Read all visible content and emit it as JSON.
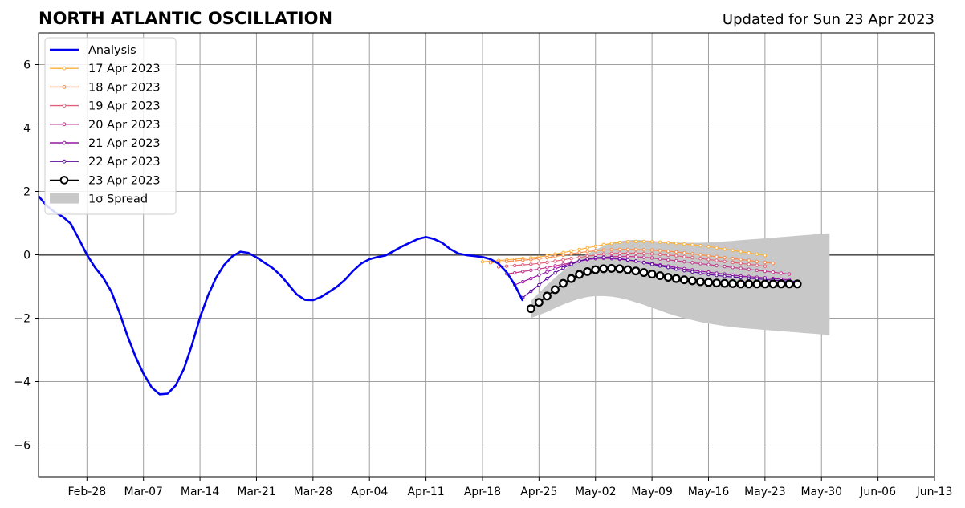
{
  "header": {
    "title": "NORTH ATLANTIC OSCILLATION",
    "updated": "Updated for Sun 23 Apr 2023"
  },
  "chart_data": {
    "type": "line",
    "title": "NORTH ATLANTIC OSCILLATION",
    "subtitle": "Updated for Sun 23 Apr 2023",
    "xlabel": "",
    "ylabel": "",
    "x_axis": {
      "min": "2023-02-22",
      "max": "2023-06-13",
      "ticks": [
        {
          "date": "2023-02-28",
          "label": "Feb-28"
        },
        {
          "date": "2023-03-07",
          "label": "Mar-07"
        },
        {
          "date": "2023-03-14",
          "label": "Mar-14"
        },
        {
          "date": "2023-03-21",
          "label": "Mar-21"
        },
        {
          "date": "2023-03-28",
          "label": "Mar-28"
        },
        {
          "date": "2023-04-04",
          "label": "Apr-04"
        },
        {
          "date": "2023-04-11",
          "label": "Apr-11"
        },
        {
          "date": "2023-04-18",
          "label": "Apr-18"
        },
        {
          "date": "2023-04-25",
          "label": "Apr-25"
        },
        {
          "date": "2023-05-02",
          "label": "May-02"
        },
        {
          "date": "2023-05-09",
          "label": "May-09"
        },
        {
          "date": "2023-05-16",
          "label": "May-16"
        },
        {
          "date": "2023-05-23",
          "label": "May-23"
        },
        {
          "date": "2023-05-30",
          "label": "May-30"
        },
        {
          "date": "2023-06-06",
          "label": "Jun-06"
        },
        {
          "date": "2023-06-13",
          "label": "Jun-13"
        }
      ]
    },
    "y_axis": {
      "min": -7,
      "max": 7,
      "ticks": [
        {
          "value": -6,
          "label": "−6"
        },
        {
          "value": -4,
          "label": "−4"
        },
        {
          "value": -2,
          "label": "−2"
        },
        {
          "value": 0,
          "label": "0"
        },
        {
          "value": 2,
          "label": "2"
        },
        {
          "value": 4,
          "label": "4"
        },
        {
          "value": 6,
          "label": "6"
        }
      ]
    },
    "grid": true,
    "legend_position": "top-left",
    "analysis": {
      "name": "Analysis",
      "color": "#0000ee",
      "points": [
        [
          "2023-02-22",
          1.85
        ],
        [
          "2023-02-23",
          1.55
        ],
        [
          "2023-02-24",
          1.35
        ],
        [
          "2023-02-25",
          1.2
        ],
        [
          "2023-02-26",
          0.98
        ],
        [
          "2023-02-27",
          0.5
        ],
        [
          "2023-02-28",
          0.0
        ],
        [
          "2023-03-01",
          -0.4
        ],
        [
          "2023-03-02",
          -0.72
        ],
        [
          "2023-03-03",
          -1.15
        ],
        [
          "2023-03-04",
          -1.8
        ],
        [
          "2023-03-05",
          -2.55
        ],
        [
          "2023-03-06",
          -3.2
        ],
        [
          "2023-03-07",
          -3.75
        ],
        [
          "2023-03-08",
          -4.18
        ],
        [
          "2023-03-09",
          -4.4
        ],
        [
          "2023-03-10",
          -4.38
        ],
        [
          "2023-03-11",
          -4.12
        ],
        [
          "2023-03-12",
          -3.6
        ],
        [
          "2023-03-13",
          -2.85
        ],
        [
          "2023-03-14",
          -1.98
        ],
        [
          "2023-03-15",
          -1.28
        ],
        [
          "2023-03-16",
          -0.72
        ],
        [
          "2023-03-17",
          -0.32
        ],
        [
          "2023-03-18",
          -0.05
        ],
        [
          "2023-03-19",
          0.1
        ],
        [
          "2023-03-20",
          0.06
        ],
        [
          "2023-03-21",
          -0.08
        ],
        [
          "2023-03-22",
          -0.25
        ],
        [
          "2023-03-23",
          -0.42
        ],
        [
          "2023-03-24",
          -0.65
        ],
        [
          "2023-03-25",
          -0.95
        ],
        [
          "2023-03-26",
          -1.25
        ],
        [
          "2023-03-27",
          -1.42
        ],
        [
          "2023-03-28",
          -1.43
        ],
        [
          "2023-03-29",
          -1.33
        ],
        [
          "2023-03-30",
          -1.17
        ],
        [
          "2023-03-31",
          -1.0
        ],
        [
          "2023-04-01",
          -0.78
        ],
        [
          "2023-04-02",
          -0.5
        ],
        [
          "2023-04-03",
          -0.27
        ],
        [
          "2023-04-04",
          -0.14
        ],
        [
          "2023-04-05",
          -0.07
        ],
        [
          "2023-04-06",
          -0.02
        ],
        [
          "2023-04-07",
          0.12
        ],
        [
          "2023-04-08",
          0.26
        ],
        [
          "2023-04-09",
          0.38
        ],
        [
          "2023-04-10",
          0.5
        ],
        [
          "2023-04-11",
          0.56
        ],
        [
          "2023-04-12",
          0.5
        ],
        [
          "2023-04-13",
          0.38
        ],
        [
          "2023-04-14",
          0.18
        ],
        [
          "2023-04-15",
          0.04
        ],
        [
          "2023-04-16",
          -0.01
        ],
        [
          "2023-04-17",
          -0.04
        ],
        [
          "2023-04-18",
          -0.07
        ],
        [
          "2023-04-19",
          -0.14
        ],
        [
          "2023-04-20",
          -0.28
        ],
        [
          "2023-04-21",
          -0.55
        ],
        [
          "2023-04-22",
          -0.95
        ],
        [
          "2023-04-23",
          -1.45
        ]
      ]
    },
    "forecasts": [
      {
        "name": "17 Apr 2023",
        "color": "#fbb03b",
        "start": "2023-04-18",
        "values": [
          -0.22,
          -0.2,
          -0.18,
          -0.16,
          -0.14,
          -0.12,
          -0.1,
          -0.07,
          -0.03,
          0.02,
          0.07,
          0.12,
          0.17,
          0.22,
          0.27,
          0.32,
          0.36,
          0.39,
          0.41,
          0.42,
          0.42,
          0.41,
          0.4,
          0.38,
          0.36,
          0.34,
          0.32,
          0.29,
          0.26,
          0.22,
          0.18,
          0.14,
          0.1,
          0.06,
          0.02,
          -0.02
        ]
      },
      {
        "name": "18 Apr 2023",
        "color": "#f78d4b",
        "start": "2023-04-19",
        "values": [
          -0.25,
          -0.23,
          -0.21,
          -0.19,
          -0.17,
          -0.15,
          -0.12,
          -0.09,
          -0.05,
          -0.01,
          0.03,
          0.07,
          0.1,
          0.13,
          0.15,
          0.16,
          0.17,
          0.17,
          0.17,
          0.16,
          0.15,
          0.13,
          0.11,
          0.09,
          0.06,
          0.03,
          0.0,
          -0.03,
          -0.06,
          -0.09,
          -0.12,
          -0.15,
          -0.18,
          -0.21,
          -0.24,
          -0.27
        ]
      },
      {
        "name": "19 Apr 2023",
        "color": "#e0607a",
        "start": "2023-04-20",
        "values": [
          -0.38,
          -0.36,
          -0.34,
          -0.32,
          -0.3,
          -0.27,
          -0.24,
          -0.2,
          -0.16,
          -0.12,
          -0.08,
          -0.04,
          -0.01,
          0.02,
          0.04,
          0.05,
          0.05,
          0.05,
          0.04,
          0.03,
          0.01,
          -0.01,
          -0.03,
          -0.06,
          -0.09,
          -0.12,
          -0.15,
          -0.18,
          -0.21,
          -0.24,
          -0.27,
          -0.3,
          -0.33,
          -0.36
        ]
      },
      {
        "name": "20 Apr 2023",
        "color": "#c2398f",
        "start": "2023-04-21",
        "values": [
          -0.6,
          -0.57,
          -0.53,
          -0.49,
          -0.45,
          -0.4,
          -0.35,
          -0.3,
          -0.25,
          -0.2,
          -0.15,
          -0.11,
          -0.08,
          -0.06,
          -0.05,
          -0.05,
          -0.06,
          -0.08,
          -0.1,
          -0.13,
          -0.16,
          -0.19,
          -0.22,
          -0.25,
          -0.28,
          -0.31,
          -0.34,
          -0.37,
          -0.4,
          -0.43,
          -0.46,
          -0.49,
          -0.52,
          -0.55,
          -0.58,
          -0.61
        ]
      },
      {
        "name": "21 Apr 2023",
        "color": "#9517a3",
        "start": "2023-04-22",
        "values": [
          -0.95,
          -0.85,
          -0.75,
          -0.64,
          -0.54,
          -0.44,
          -0.35,
          -0.27,
          -0.2,
          -0.15,
          -0.12,
          -0.11,
          -0.12,
          -0.14,
          -0.17,
          -0.2,
          -0.24,
          -0.28,
          -0.32,
          -0.36,
          -0.4,
          -0.44,
          -0.48,
          -0.52,
          -0.55,
          -0.58,
          -0.61,
          -0.64,
          -0.67,
          -0.69,
          -0.71,
          -0.73,
          -0.75,
          -0.77,
          -0.79
        ]
      },
      {
        "name": "22 Apr 2023",
        "color": "#5d0aa0",
        "start": "2023-04-23",
        "values": [
          -1.35,
          -1.15,
          -0.95,
          -0.75,
          -0.57,
          -0.42,
          -0.3,
          -0.2,
          -0.13,
          -0.09,
          -0.08,
          -0.09,
          -0.12,
          -0.16,
          -0.2,
          -0.25,
          -0.3,
          -0.35,
          -0.4,
          -0.45,
          -0.5,
          -0.54,
          -0.58,
          -0.62,
          -0.65,
          -0.68,
          -0.7,
          -0.72,
          -0.74,
          -0.76,
          -0.78,
          -0.8,
          -0.82,
          -0.83,
          -0.84
        ]
      },
      {
        "name": "23 Apr 2023",
        "color": "#000000",
        "marker": "open-circle",
        "start": "2023-04-24",
        "values": [
          -1.7,
          -1.5,
          -1.3,
          -1.1,
          -0.9,
          -0.75,
          -0.62,
          -0.53,
          -0.47,
          -0.44,
          -0.43,
          -0.44,
          -0.47,
          -0.51,
          -0.56,
          -0.61,
          -0.66,
          -0.71,
          -0.75,
          -0.79,
          -0.82,
          -0.85,
          -0.87,
          -0.89,
          -0.9,
          -0.91,
          -0.92,
          -0.92,
          -0.92,
          -0.92,
          -0.92,
          -0.92,
          -0.92,
          -0.92
        ]
      }
    ],
    "spread": {
      "name": "1σ Spread",
      "color": "#c8c8c8",
      "start": "2023-04-24",
      "upper": [
        -1.45,
        -1.2,
        -0.95,
        -0.72,
        -0.5,
        -0.3,
        -0.12,
        0.03,
        0.16,
        0.28,
        0.37,
        0.43,
        0.46,
        0.47,
        0.46,
        0.44,
        0.42,
        0.4,
        0.39,
        0.38,
        0.38,
        0.38,
        0.39,
        0.4,
        0.42,
        0.44,
        0.46,
        0.48,
        0.5,
        0.52,
        0.54,
        0.56,
        0.58,
        0.6,
        0.62,
        0.64,
        0.66,
        0.68
      ],
      "lower": [
        -2.0,
        -1.9,
        -1.8,
        -1.68,
        -1.57,
        -1.47,
        -1.39,
        -1.33,
        -1.3,
        -1.3,
        -1.32,
        -1.36,
        -1.42,
        -1.5,
        -1.58,
        -1.67,
        -1.76,
        -1.85,
        -1.93,
        -2.0,
        -2.06,
        -2.12,
        -2.17,
        -2.21,
        -2.25,
        -2.28,
        -2.31,
        -2.33,
        -2.35,
        -2.37,
        -2.39,
        -2.41,
        -2.43,
        -2.45,
        -2.47,
        -2.49,
        -2.51,
        -2.53
      ]
    }
  }
}
